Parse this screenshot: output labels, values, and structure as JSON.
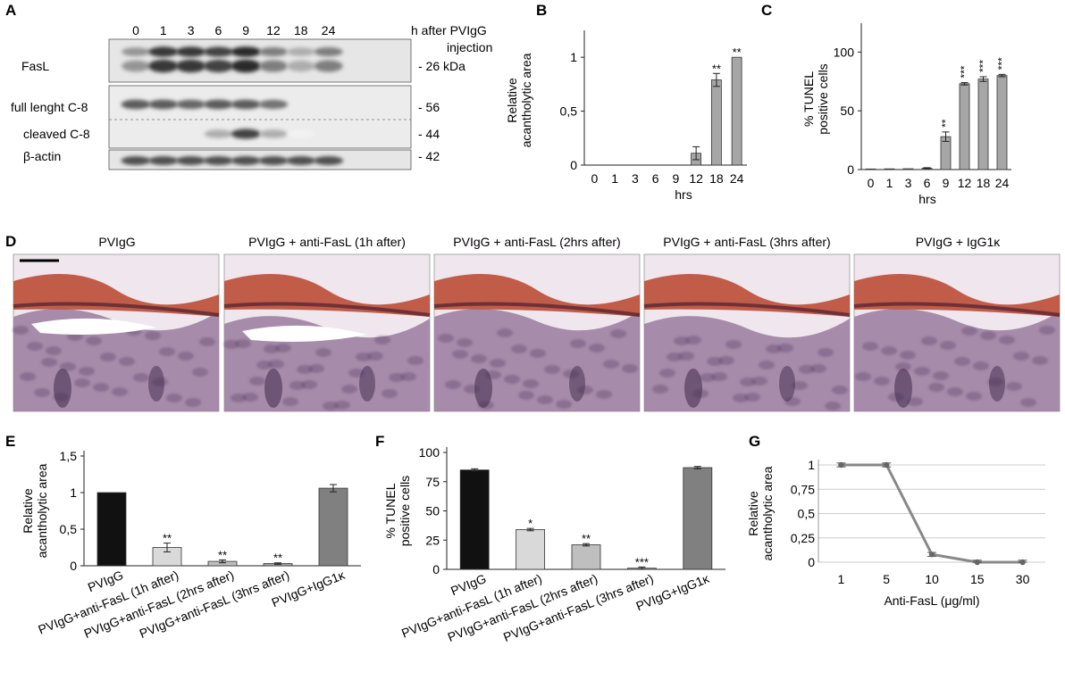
{
  "panel_letters": {
    "A": "A",
    "B": "B",
    "C": "C",
    "D": "D",
    "E": "E",
    "F": "F",
    "G": "G"
  },
  "blot": {
    "lanes": [
      "0",
      "1",
      "3",
      "6",
      "9",
      "12",
      "18",
      "24"
    ],
    "header_line1": "h after PVIgG",
    "header_line2": "injection",
    "row_labels": {
      "fasl": "FasL",
      "full": "full lenght C-8",
      "cleaved": "cleaved C-8",
      "actin": "β-actin"
    },
    "markers": {
      "fasl": "- 26 kDa",
      "full": "- 56",
      "cleaved": "- 44",
      "actin": "- 42"
    },
    "intensity": {
      "fasl": [
        0.45,
        0.85,
        0.85,
        0.8,
        0.9,
        0.55,
        0.35,
        0.55
      ],
      "full": [
        0.7,
        0.7,
        0.65,
        0.7,
        0.7,
        0.6,
        0.0,
        0.0
      ],
      "cleaved": [
        0.0,
        0.0,
        0.0,
        0.35,
        0.8,
        0.35,
        0.05,
        0.0
      ],
      "actin": [
        0.75,
        0.75,
        0.75,
        0.75,
        0.75,
        0.75,
        0.75,
        0.75
      ]
    }
  },
  "histology": {
    "titles": [
      "PVIgG",
      "PVIgG + anti-FasL (1h after)",
      "PVIgG + anti-FasL (2hrs after)",
      "PVIgG + anti-FasL (3hrs after)",
      "PVIgG + IgG1κ"
    ]
  },
  "chart_data": [
    {
      "id": "B",
      "type": "bar",
      "categories": [
        "0",
        "1",
        "3",
        "6",
        "9",
        "12",
        "18",
        "24"
      ],
      "values": [
        0,
        0,
        0,
        0,
        0,
        0.11,
        0.79,
        1.0
      ],
      "errors": [
        0,
        0,
        0,
        0,
        0,
        0.06,
        0.06,
        0
      ],
      "significance": [
        "",
        "",
        "",
        "",
        "",
        "",
        "**",
        "**"
      ],
      "ylim": [
        0,
        1.2
      ],
      "yticks": [
        "0",
        "0,5",
        "1"
      ],
      "ytick_values": [
        0,
        0.5,
        1
      ],
      "xlabel": "hrs",
      "ylabel_lines": [
        "Relative",
        "acantholytic area"
      ],
      "bar_color": "#a6a6a6"
    },
    {
      "id": "C",
      "type": "bar",
      "categories": [
        "0",
        "1",
        "3",
        "6",
        "9",
        "12",
        "18",
        "24"
      ],
      "values": [
        0.5,
        0.6,
        0.7,
        1.2,
        28,
        73,
        77,
        80
      ],
      "errors": [
        0,
        0,
        0,
        0.4,
        4,
        1,
        2,
        1
      ],
      "significance": [
        "",
        "",
        "",
        "",
        "**",
        "***",
        "***",
        "***"
      ],
      "ylim": [
        0,
        120
      ],
      "yticks": [
        "0",
        "50",
        "100"
      ],
      "ytick_values": [
        0,
        50,
        100
      ],
      "xlabel": "hrs",
      "ylabel_lines": [
        "% TUNEL",
        "positive cells"
      ],
      "bar_color": "#a6a6a6"
    },
    {
      "id": "E",
      "type": "bar",
      "categories": [
        "PVIgG",
        "PVIgG+anti-FasL (1h after)",
        "PVIgG+anti-FasL (2hrs after)",
        "PVIgG+anti-FasL (3hrs after)",
        "PVIgG+IgG1κ"
      ],
      "values": [
        1.0,
        0.25,
        0.06,
        0.03,
        1.06
      ],
      "errors": [
        0,
        0.06,
        0.02,
        0.01,
        0.05
      ],
      "significance": [
        "",
        "**",
        "**",
        "**",
        ""
      ],
      "colors": [
        "#111111",
        "#d9d9d9",
        "#bfbfbf",
        "#a6a6a6",
        "#808080"
      ],
      "ylim": [
        0,
        1.5
      ],
      "yticks": [
        "0",
        "0,5",
        "1",
        "1,5"
      ],
      "ytick_values": [
        0,
        0.5,
        1,
        1.5
      ],
      "ylabel_lines": [
        "Relative",
        "acantholytic area"
      ]
    },
    {
      "id": "F",
      "type": "bar",
      "categories": [
        "PVIgG",
        "PVIgG+anti-FasL (1h after)",
        "PVIgG+anti-FasL (2hrs after)",
        "PVIgG+anti-FasL (3hrs after)",
        "PVIgG+IgG1κ"
      ],
      "values": [
        85,
        34,
        21,
        1,
        87
      ],
      "errors": [
        1,
        1,
        1,
        1,
        1
      ],
      "significance": [
        "",
        "*",
        "**",
        "***",
        ""
      ],
      "colors": [
        "#111111",
        "#d9d9d9",
        "#bfbfbf",
        "#a6a6a6",
        "#808080"
      ],
      "ylim": [
        0,
        100
      ],
      "yticks": [
        "0",
        "25",
        "50",
        "75",
        "100"
      ],
      "ytick_values": [
        0,
        25,
        50,
        75,
        100
      ],
      "ylabel_lines": [
        "% TUNEL",
        "positive cells"
      ]
    },
    {
      "id": "G",
      "type": "line",
      "x": [
        "1",
        "5",
        "10",
        "15",
        "30"
      ],
      "values": [
        1.0,
        1.0,
        0.08,
        0,
        0
      ],
      "errors": [
        0.02,
        0.02,
        0.02,
        0.02,
        0.02
      ],
      "ylim": [
        0,
        1.0
      ],
      "yticks": [
        "0",
        "0,25",
        "0,5",
        "0,75",
        "1"
      ],
      "ytick_values": [
        0,
        0.25,
        0.5,
        0.75,
        1
      ],
      "xlabel": "Anti-FasL (μg/ml)",
      "ylabel_lines": [
        "Relative",
        "acantholytic area"
      ],
      "line_color": "#888888",
      "grid": true
    }
  ]
}
